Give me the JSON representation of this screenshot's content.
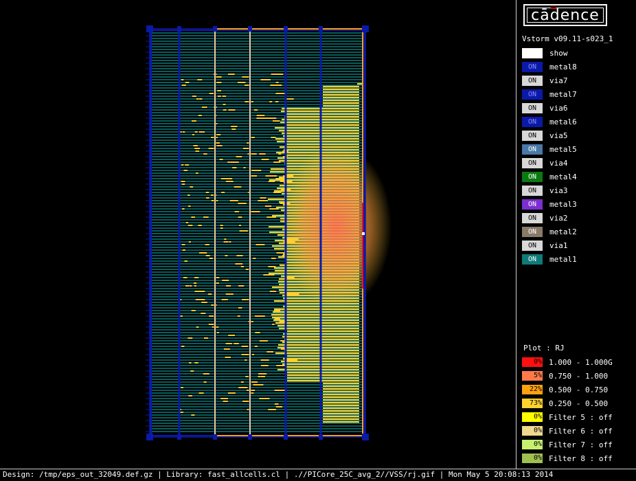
{
  "app": {
    "logo_text": "cādence",
    "version": "Vstorm v09.11-s023_1"
  },
  "layers": [
    {
      "label": "show",
      "state": "",
      "swatch_color": "#ffffff",
      "state_color": "#000000"
    },
    {
      "label": "metal8",
      "state": "ON",
      "swatch_color": "#0a1aa8",
      "state_color": "#8a8aff"
    },
    {
      "label": "via7",
      "state": "ON",
      "swatch_color": "#d8d8d8",
      "state_color": "#000000"
    },
    {
      "label": "metal7",
      "state": "ON",
      "swatch_color": "#0a1aa8",
      "state_color": "#8a8aff"
    },
    {
      "label": "via6",
      "state": "ON",
      "swatch_color": "#d8d8d8",
      "state_color": "#000000"
    },
    {
      "label": "metal6",
      "state": "ON",
      "swatch_color": "#0a1aa8",
      "state_color": "#8a8aff"
    },
    {
      "label": "via5",
      "state": "ON",
      "swatch_color": "#d8d8d8",
      "state_color": "#000000"
    },
    {
      "label": "metal5",
      "state": "ON",
      "swatch_color": "#4a78a8",
      "state_color": "#ffffff"
    },
    {
      "label": "via4",
      "state": "ON",
      "swatch_color": "#d8d8d8",
      "state_color": "#000000"
    },
    {
      "label": "metal4",
      "state": "ON",
      "swatch_color": "#0a7a10",
      "state_color": "#ffffff"
    },
    {
      "label": "via3",
      "state": "ON",
      "swatch_color": "#d8d8d8",
      "state_color": "#000000"
    },
    {
      "label": "metal3",
      "state": "ON",
      "swatch_color": "#7b2fd0",
      "state_color": "#ffffff"
    },
    {
      "label": "via2",
      "state": "ON",
      "swatch_color": "#d8d8d8",
      "state_color": "#000000"
    },
    {
      "label": "metal2",
      "state": "ON",
      "swatch_color": "#8a7a6a",
      "state_color": "#ffffff"
    },
    {
      "label": "via1",
      "state": "ON",
      "swatch_color": "#d8d8d8",
      "state_color": "#000000"
    },
    {
      "label": "metal1",
      "state": "ON",
      "swatch_color": "#0e7a7a",
      "state_color": "#ffffff"
    }
  ],
  "plot": {
    "title": "Plot : RJ",
    "legend": [
      {
        "pct": "0%",
        "label": "1.000 - 1.000G",
        "color": "#ff1010"
      },
      {
        "pct": "5%",
        "label": "0.750 - 1.000",
        "color": "#ff7a4a"
      },
      {
        "pct": "22%",
        "label": "0.500 - 0.750",
        "color": "#ffa010"
      },
      {
        "pct": "73%",
        "label": "0.250 - 0.500",
        "color": "#ffd030"
      },
      {
        "pct": "0%",
        "label": "Filter 5 : off",
        "color": "#ffff00"
      },
      {
        "pct": "0%",
        "label": "Filter 6 : off",
        "color": "#f0d890"
      },
      {
        "pct": "0%",
        "label": "Filter 7 : off",
        "color": "#c8f070"
      },
      {
        "pct": "0%",
        "label": "Filter 8 : off",
        "color": "#a0c050"
      }
    ]
  },
  "status_bar": {
    "text": "Design: /tmp/eps_out_32049.def.gz | Library: fast_allcells.cl | .//PICore_25C_avg_2//VSS/rj.gif | Mon May  5 20:08:13 2014"
  },
  "layout_view": {
    "stripe_color": "#0e7a7a",
    "strap_color": "#0a1aa8",
    "selection_color": "#ffa010",
    "hot_color": "#ffd030",
    "warm_color": "#ff9040",
    "max_color": "#ff1010"
  }
}
